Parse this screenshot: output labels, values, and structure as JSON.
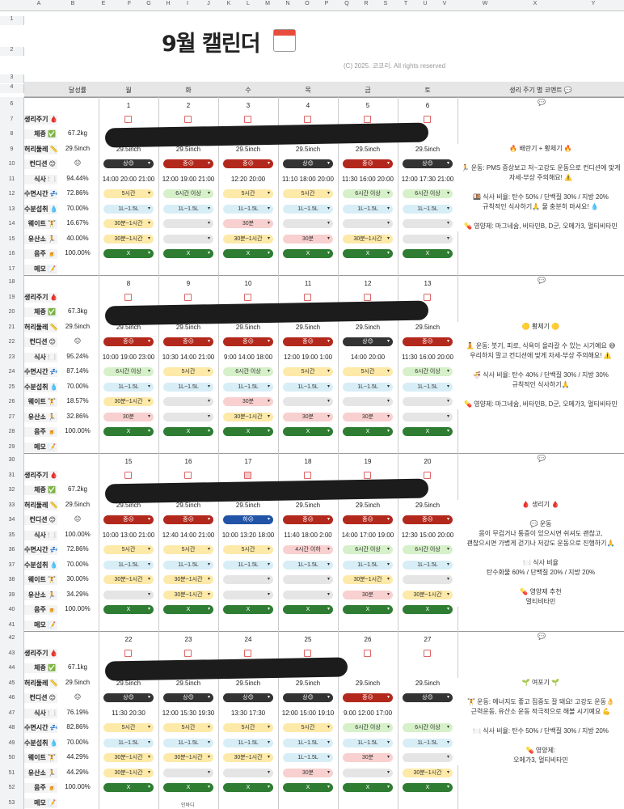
{
  "sheet": {
    "col_letters": [
      "A",
      "B",
      "E",
      "F",
      "G",
      "H",
      "I",
      "J",
      "K",
      "L",
      "M",
      "N",
      "O",
      "P",
      "Q",
      "R",
      "S",
      "T",
      "U",
      "V",
      "W",
      "X",
      "Y",
      "Z"
    ],
    "title": "9월 캘린더",
    "copyright": "(C) 2025. 코코리. All rights reserved",
    "achievement_header": "달성률",
    "days_header": [
      "월",
      "화",
      "수",
      "목",
      "금",
      "토"
    ],
    "comment_header": "생리 주기 별 코멘트 💬"
  },
  "row_labels": [
    "생리주기 🩸",
    "체중 ✅",
    "허리둘레 📏",
    "컨디션 😊",
    "식사 🍽️",
    "수면시간 💤",
    "수분섭취 💧",
    "웨이트 🏋️",
    "유산소 🏃",
    "음주 🍺",
    "메모 📝"
  ],
  "weeks": [
    {
      "rows": [
        "6",
        "7",
        "8",
        "9",
        "10",
        "11",
        "12",
        "13",
        "14",
        "15",
        "16",
        "17"
      ],
      "dates": [
        "1",
        "2",
        "3",
        "4",
        "5",
        "6"
      ],
      "weight": "67.2kg",
      "waist": "29.5inch",
      "cond_emoji": "😐",
      "meal_pct": "94.44%",
      "sleep_pct": "72.86%",
      "water_pct": "70.00%",
      "weight_pct": "16.67%",
      "cardio_pct": "40.00%",
      "alcohol_pct": "100.00%",
      "waist_days": [
        "29.5inch",
        "29.5inch",
        "29.5inch",
        "29.5inch",
        "29.5inch",
        "29.5inch"
      ],
      "cond": [
        [
          "상😊",
          "dark"
        ],
        [
          "중😐",
          "red"
        ],
        [
          "중😐",
          "red"
        ],
        [
          "상😊",
          "dark"
        ],
        [
          "중😐",
          "red"
        ],
        [
          "상😊",
          "dark"
        ]
      ],
      "times": [
        "14:00 20:00 21:00",
        "12:00 19:00 21:00",
        "12:20 20:00",
        "11:10 18:00 20:00",
        "11:30 16:00 20:00",
        "12:00 17:30 21:00"
      ],
      "sleep": [
        [
          "5시간",
          "yel"
        ],
        [
          "6시간 이상",
          "grn"
        ],
        [
          "5시간",
          "yel"
        ],
        [
          "5시간",
          "yel"
        ],
        [
          "6시간 이상",
          "grn"
        ],
        [
          "6시간 이상",
          "grn"
        ]
      ],
      "water": [
        [
          "1L~1.5L",
          "lgreen"
        ],
        [
          "1L~1.5L",
          "lgreen"
        ],
        [
          "1L~1.5L",
          "lgreen"
        ],
        [
          "1L~1.5L",
          "lgreen"
        ],
        [
          "1L~1.5L",
          "lgreen"
        ],
        [
          "1L~1.5L",
          "lgreen"
        ]
      ],
      "wt": [
        [
          "30분~1시간",
          "yel"
        ],
        [
          "",
          "gray"
        ],
        [
          "30분",
          "pink"
        ],
        [
          "",
          "gray"
        ],
        [
          "",
          "gray"
        ],
        [
          "",
          "gray"
        ]
      ],
      "cardio": [
        [
          "30분~1시간",
          "yel"
        ],
        [
          "",
          "gray"
        ],
        [
          "30분~1시간",
          "yel"
        ],
        [
          "30분",
          "pink"
        ],
        [
          "30분~1시간",
          "yel"
        ],
        [
          "",
          "gray"
        ]
      ],
      "alc": [
        "X",
        "X",
        "X",
        "X",
        "X",
        "X"
      ],
      "memo": [
        "",
        "",
        "",
        "",
        "",
        ""
      ],
      "comment": [
        "🔥 배란기 + 황체기 🔥",
        "",
        "🏃 운동: PMS 증상보고 저~고강도 운동으로 컨디션에 맞게 자세-부상 주의해요! ⚠️",
        "",
        "🍱 식사 비율: 탄수 50% / 단백질 30% / 지방 20%",
        "규칙적인 식사하기🙏 물 충분히 마셔요! 💧",
        "",
        "💊 영양제: 마그네슘, 비타민B, D군, 오메가3, 멀티비타민"
      ]
    },
    {
      "rows": [
        "18",
        "19",
        "20",
        "21",
        "22",
        "23",
        "24",
        "25",
        "26",
        "27",
        "28",
        "29"
      ],
      "dates": [
        "8",
        "9",
        "10",
        "11",
        "12",
        "13"
      ],
      "weight": "67.3kg",
      "waist": "29.5inch",
      "cond_emoji": "😐",
      "meal_pct": "95.24%",
      "sleep_pct": "87.14%",
      "water_pct": "70.00%",
      "weight_pct": "18.57%",
      "cardio_pct": "32.86%",
      "alcohol_pct": "100.00%",
      "waist_days": [
        "29.5inch",
        "29.5inch",
        "29.5inch",
        "29.5inch",
        "29.5inch",
        "29.5inch"
      ],
      "cond": [
        [
          "중😐",
          "red"
        ],
        [
          "중😐",
          "red"
        ],
        [
          "중😐",
          "red"
        ],
        [
          "중😐",
          "red"
        ],
        [
          "상😊",
          "dark"
        ],
        [
          "중😐",
          "red"
        ]
      ],
      "times": [
        "10:00 19:00 23:00",
        "10:30 14:00 21:00",
        "9:00 14:00 18:00",
        "12:00 19:00 1:00",
        "14:00 20:00",
        "11:30 16:00 20:00"
      ],
      "sleep": [
        [
          "6시간 이상",
          "grn"
        ],
        [
          "5시간",
          "yel"
        ],
        [
          "6시간 이상",
          "grn"
        ],
        [
          "5시간",
          "yel"
        ],
        [
          "5시간",
          "yel"
        ],
        [
          "6시간 이상",
          "grn"
        ]
      ],
      "water": [
        [
          "1L~1.5L",
          "lgreen"
        ],
        [
          "1L~1.5L",
          "lgreen"
        ],
        [
          "1L~1.5L",
          "lgreen"
        ],
        [
          "1L~1.5L",
          "lgreen"
        ],
        [
          "1L~1.5L",
          "lgreen"
        ],
        [
          "1L~1.5L",
          "lgreen"
        ]
      ],
      "wt": [
        [
          "30분~1시간",
          "yel"
        ],
        [
          "",
          "gray"
        ],
        [
          "30분",
          "pink"
        ],
        [
          "",
          "gray"
        ],
        [
          "",
          "gray"
        ],
        [
          "",
          "gray"
        ]
      ],
      "cardio": [
        [
          "30분",
          "pink"
        ],
        [
          "",
          "gray"
        ],
        [
          "30분~1시간",
          "yel"
        ],
        [
          "30분",
          "pink"
        ],
        [
          "30분",
          "pink"
        ],
        [
          "",
          "gray"
        ]
      ],
      "alc": [
        "X",
        "X",
        "X",
        "X",
        "X",
        "X"
      ],
      "memo": [
        "",
        "",
        "",
        "",
        "",
        ""
      ],
      "comment": [
        "🟡 황체기 🟡",
        "",
        "🧘 운동: 붓기, 피로, 식욕이 올라갈 수 있는 시기예요 😅",
        "우리하지 말고 컨디션에 맞게 자세-부상 주의해요! ⚠️",
        "",
        "🍜 식사 비율: 탄수 40% / 단백질 30% / 지방 30%",
        "규칙적인 식사하기🙏",
        "",
        "💊 영양제: 마그네슘, 비타민B, D군, 오메가3, 멀티비타민"
      ]
    },
    {
      "rows": [
        "30",
        "31",
        "32",
        "33",
        "34",
        "35",
        "36",
        "37",
        "38",
        "39",
        "40",
        "41"
      ],
      "dates": [
        "15",
        "16",
        "17",
        "18",
        "19",
        "20"
      ],
      "weight": "67.2kg",
      "waist": "29.5inch",
      "cond_emoji": "😐",
      "meal_pct": "100.00%",
      "sleep_pct": "72.86%",
      "water_pct": "70.00%",
      "weight_pct": "30.00%",
      "cardio_pct": "34.29%",
      "alcohol_pct": "100.00%",
      "waist_days": [
        "29.5inch",
        "29.5inch",
        "29.5inch",
        "29.5inch",
        "29.5inch",
        "29.5inch"
      ],
      "cond": [
        [
          "중😐",
          "red"
        ],
        [
          "중😐",
          "red"
        ],
        [
          "하😐",
          "blue"
        ],
        [
          "중😐",
          "red"
        ],
        [
          "중😐",
          "red"
        ],
        [
          "중😐",
          "red"
        ]
      ],
      "times": [
        "10:00 13:00 21:00",
        "12:40 14:00 21:00",
        "10:00 13:20 18:00",
        "11:40 18:00 2:00",
        "14:00 17:00 19:00",
        "12:30 15:00 20:00"
      ],
      "sleep": [
        [
          "5시간",
          "yel"
        ],
        [
          "5시간",
          "yel"
        ],
        [
          "5시간",
          "yel"
        ],
        [
          "4시간 이하",
          "pink"
        ],
        [
          "6시간 이상",
          "grn"
        ],
        [
          "6시간 이상",
          "grn"
        ]
      ],
      "water": [
        [
          "1L~1.5L",
          "lgreen"
        ],
        [
          "1L~1.5L",
          "lgreen"
        ],
        [
          "1L~1.5L",
          "lgreen"
        ],
        [
          "1L~1.5L",
          "lgreen"
        ],
        [
          "1L~1.5L",
          "lgreen"
        ],
        [
          "1L~1.5L",
          "lgreen"
        ]
      ],
      "wt": [
        [
          "30분~1시간",
          "yel"
        ],
        [
          "30분~1시간",
          "yel"
        ],
        [
          "",
          "gray"
        ],
        [
          "",
          "gray"
        ],
        [
          "30분~1시간",
          "yel"
        ],
        [
          "",
          "gray"
        ]
      ],
      "cardio": [
        [
          "",
          "gray"
        ],
        [
          "30분~1시간",
          "yel"
        ],
        [
          "",
          "gray"
        ],
        [
          "",
          "gray"
        ],
        [
          "30분",
          "pink"
        ],
        [
          "30분~1시간",
          "yel"
        ]
      ],
      "alc": [
        "X",
        "X",
        "X",
        "X",
        "X",
        "X"
      ],
      "memo": [
        "",
        "",
        "",
        "",
        "",
        ""
      ],
      "comment": [
        "🩸 생리기 🩸",
        "",
        "💬 운동",
        "몸이 무겁거나 통증이 있으시면 쉬셔도 괜찮고,",
        "괜찮으시면 가볍게 걷기나 저강도 운동으로 진행하기🙏",
        "",
        "🍽️ 식사 비율",
        "탄수화물 60% / 단백질 20% / 지방 20%",
        "",
        "💊 영양제 추천",
        "멀티비타민"
      ]
    },
    {
      "rows": [
        "42",
        "43",
        "44",
        "45",
        "46",
        "47",
        "48",
        "49",
        "50",
        "51",
        "52",
        "53"
      ],
      "dates": [
        "22",
        "23",
        "24",
        "25",
        "26",
        "27"
      ],
      "weight": "67.1kg",
      "waist": "29.5inch",
      "cond_emoji": "😐",
      "meal_pct": "76.19%",
      "sleep_pct": "82.86%",
      "water_pct": "70.00%",
      "weight_pct": "44.29%",
      "cardio_pct": "44.29%",
      "alcohol_pct": "100.00%",
      "waist_days": [
        "29.5inch",
        "29.5inch",
        "29.5inch",
        "29.5inch",
        "29.5inch",
        "29.5inch"
      ],
      "cond": [
        [
          "상😊",
          "dark"
        ],
        [
          "상😊",
          "dark"
        ],
        [
          "상😊",
          "dark"
        ],
        [
          "상😊",
          "dark"
        ],
        [
          "중😐",
          "red"
        ],
        [
          "상😊",
          "dark"
        ]
      ],
      "times": [
        "11:30 20:30",
        "12:00 15:30 19:30",
        "13:30 17:30",
        "12:00 15:00 19:10",
        "9:00 12:00 17:00",
        ""
      ],
      "sleep": [
        [
          "5시간",
          "yel"
        ],
        [
          "5시간",
          "yel"
        ],
        [
          "5시간",
          "yel"
        ],
        [
          "5시간",
          "yel"
        ],
        [
          "6시간 이상",
          "grn"
        ],
        [
          "6시간 이상",
          "grn"
        ]
      ],
      "water": [
        [
          "1L~1.5L",
          "lgreen"
        ],
        [
          "1L~1.5L",
          "lgreen"
        ],
        [
          "1L~1.5L",
          "lgreen"
        ],
        [
          "1L~1.5L",
          "lgreen"
        ],
        [
          "1L~1.5L",
          "lgreen"
        ],
        [
          "1L~1.5L",
          "lgreen"
        ]
      ],
      "wt": [
        [
          "30분~1시간",
          "yel"
        ],
        [
          "30분~1시간",
          "yel"
        ],
        [
          "30분~1시간",
          "yel"
        ],
        [
          "1L~1.5L",
          "lgreen"
        ],
        [
          "30분",
          "pink"
        ],
        [
          "",
          "gray"
        ]
      ],
      "cardio": [
        [
          "30분~1시간",
          "yel"
        ],
        [
          "",
          "gray"
        ],
        [
          "",
          "gray"
        ],
        [
          "30분",
          "pink"
        ],
        [
          "",
          "gray"
        ],
        [
          "30분~1시간",
          "yel"
        ]
      ],
      "alc": [
        "X",
        "X",
        "X",
        "X",
        "X",
        "X"
      ],
      "memo": [
        "",
        "인바디",
        "",
        "",
        "",
        ""
      ],
      "comment": [
        "🌱 여포기 🌱",
        "",
        "🏋️ 운동: 에너지도 좋고 집중도 잘 돼요! 고강도 운동👌",
        "근력운동, 유산소 운동 적극적으로 해볼 시기예요 💪",
        "",
        "🍽️ 식사 비율: 탄수 50% / 단백질 30% / 지방 20%",
        "",
        "💊 영양제:",
        "오메가3, 멀티비타민"
      ]
    }
  ]
}
